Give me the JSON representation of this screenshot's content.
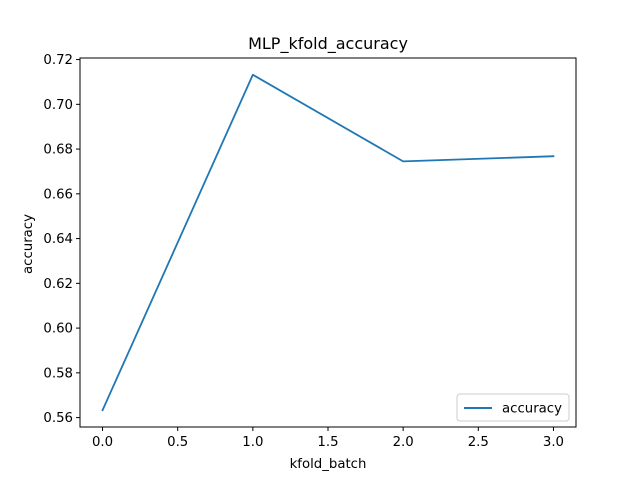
{
  "chart_data": {
    "type": "line",
    "title": "MLP_kfold_accuracy",
    "xlabel": "kfold_batch",
    "ylabel": "accuracy",
    "x": [
      0,
      1,
      2,
      3
    ],
    "series": [
      {
        "name": "accuracy",
        "values": [
          0.5633,
          0.7132,
          0.6745,
          0.6768
        ],
        "color": "#1f77b4"
      }
    ],
    "xlim": [
      -0.15,
      3.15
    ],
    "ylim": [
      0.5558,
      0.7207
    ],
    "xticks": [
      0.0,
      0.5,
      1.0,
      1.5,
      2.0,
      2.5,
      3.0
    ],
    "xtick_labels": [
      "0.0",
      "0.5",
      "1.0",
      "1.5",
      "2.0",
      "2.5",
      "3.0"
    ],
    "yticks": [
      0.56,
      0.58,
      0.6,
      0.62,
      0.64,
      0.66,
      0.68,
      0.7,
      0.72
    ],
    "ytick_labels": [
      "0.56",
      "0.58",
      "0.60",
      "0.62",
      "0.64",
      "0.66",
      "0.68",
      "0.70",
      "0.72"
    ],
    "grid": false,
    "legend_position": "lower-right"
  }
}
